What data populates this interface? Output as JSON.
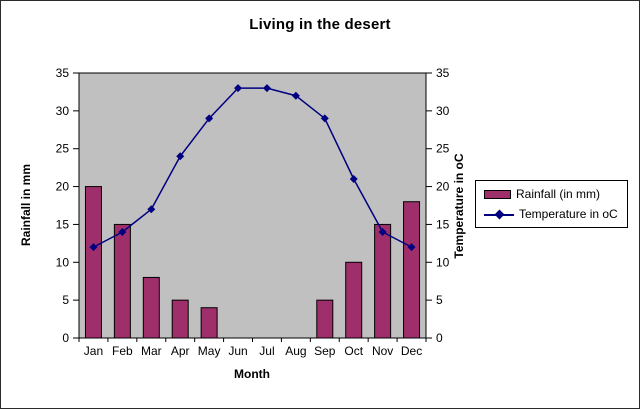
{
  "chart_data": {
    "type": "combo-bar-line",
    "title": "Living in the desert",
    "categories": [
      "Jan",
      "Feb",
      "Mar",
      "Apr",
      "May",
      "Jun",
      "Jul",
      "Aug",
      "Sep",
      "Oct",
      "Nov",
      "Dec"
    ],
    "series": [
      {
        "name": "Rainfall (in mm)",
        "type": "bar",
        "axis": "left",
        "color": "#9E2F6B",
        "values": [
          20,
          15,
          8,
          5,
          4,
          0,
          0,
          0,
          5,
          10,
          15,
          18
        ]
      },
      {
        "name": "Temperature in oC",
        "type": "line",
        "axis": "right",
        "color": "#000080",
        "marker": "diamond",
        "values": [
          12,
          14,
          17,
          24,
          29,
          33,
          33,
          32,
          29,
          21,
          14,
          12
        ]
      }
    ],
    "xlabel": "Month",
    "ylabel_left": "Rainfall in mm",
    "ylabel_right": "Temperature in oC",
    "ylim": [
      0,
      35
    ],
    "yticks": [
      0,
      5,
      10,
      15,
      20,
      25,
      30,
      35
    ],
    "plot_background": "#C0C0C0",
    "chart_background": "#FFFFFF",
    "axis_color": "#000000",
    "grid": false,
    "legend_position": "right",
    "legend_border_color": "#000000"
  }
}
